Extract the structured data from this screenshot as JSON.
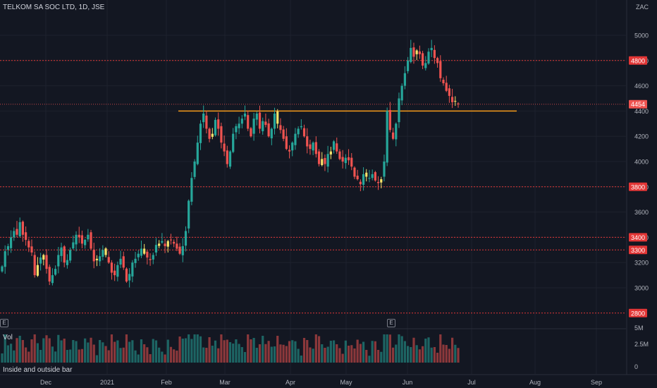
{
  "header": {
    "title": "TELKOM SA SOC LTD, 1D, JSE",
    "unit": "ZAC"
  },
  "volume_pane": {
    "label": "Vol",
    "ticks": [
      "5M",
      "2.5M",
      "0"
    ]
  },
  "indicator_label": "Inside and outside bar",
  "event_badges": [
    "E",
    "E"
  ],
  "colors": {
    "up": "#26a69a",
    "down": "#ef5350",
    "inside": "#f7e36b",
    "level_line": "#e23636",
    "breakout_line": "#f59a1b",
    "background": "#131722"
  },
  "chart_data": {
    "type": "candlestick",
    "x_axis": {
      "ticks": [
        "Dec",
        "2021",
        "Feb",
        "Mar",
        "Apr",
        "May",
        "Jun",
        "Jul",
        "Aug",
        "Sep"
      ]
    },
    "y_axis": {
      "ticks": [
        3000,
        3200,
        3400,
        3600,
        3800,
        4000,
        4200,
        4400,
        4600,
        4800,
        5000
      ],
      "range": [
        2750,
        5200
      ]
    },
    "horizontal_levels": [
      {
        "value": 4800,
        "label": "4800"
      },
      {
        "value": 3800,
        "label": "3800"
      },
      {
        "value": 3400,
        "label": "3400"
      },
      {
        "value": 3300,
        "label": "3300"
      },
      {
        "value": 2800,
        "label": "2800"
      }
    ],
    "breakout_level": 4400,
    "last_price": {
      "value": 4454,
      "label": "4454"
    },
    "series": [
      {
        "name": "Price",
        "close": [
          3170,
          3290,
          3330,
          3400,
          3450,
          3420,
          3520,
          3420,
          3380,
          3320,
          3280,
          3100,
          3180,
          3240,
          3260,
          3150,
          3050,
          3100,
          3150,
          3260,
          3320,
          3200,
          3220,
          3300,
          3360,
          3420,
          3400,
          3350,
          3380,
          3420,
          3310,
          3210,
          3230,
          3250,
          3300,
          3260,
          3200,
          3120,
          3100,
          3180,
          3230,
          3160,
          3050,
          3110,
          3200,
          3230,
          3270,
          3310,
          3270,
          3240,
          3220,
          3260,
          3340,
          3350,
          3370,
          3330,
          3370,
          3380,
          3350,
          3310,
          3270,
          3330,
          3450,
          3690,
          3870,
          4000,
          4150,
          4300,
          4380,
          4260,
          4180,
          4220,
          4330,
          4260,
          4150,
          4080,
          3980,
          4080,
          4220,
          4280,
          4300,
          4340,
          4380,
          4260,
          4200,
          4340,
          4380,
          4260,
          4320,
          4290,
          4200,
          4260,
          4380,
          4300,
          4250,
          4180,
          4100,
          4080,
          4150,
          4220,
          4260,
          4280,
          4200,
          4120,
          4100,
          4150,
          4060,
          3980,
          4020,
          3980,
          4060,
          4080,
          4160,
          4080,
          4020,
          4000,
          4030,
          4010,
          3960,
          3880,
          3860,
          3820,
          3900,
          3880,
          3870,
          3900,
          3850,
          3830,
          3860,
          4000,
          4400,
          4250,
          4180,
          4300,
          4500,
          4600,
          4700,
          4800,
          4900,
          4830,
          4880,
          4850,
          4760,
          4780,
          4870,
          4900,
          4820,
          4780,
          4660,
          4620,
          4560,
          4520,
          4470,
          4480,
          4454
        ]
      }
    ]
  }
}
